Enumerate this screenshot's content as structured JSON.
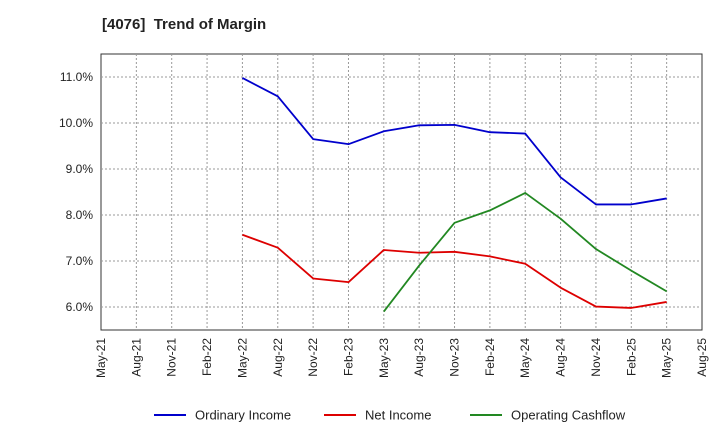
{
  "chart_data": {
    "type": "line",
    "title": "[4076]  Trend of Margin",
    "xlabel": "",
    "ylabel": "",
    "ylim": [
      5.5,
      11.5
    ],
    "yticks": [
      6.0,
      7.0,
      8.0,
      9.0,
      10.0,
      11.0
    ],
    "ytick_labels": [
      "6.0%",
      "7.0%",
      "8.0%",
      "9.0%",
      "10.0%",
      "11.0%"
    ],
    "categories": [
      "May-21",
      "Aug-21",
      "Nov-21",
      "Feb-22",
      "May-22",
      "Aug-22",
      "Nov-22",
      "Feb-23",
      "May-23",
      "Aug-23",
      "Nov-23",
      "Feb-24",
      "May-24",
      "Aug-24",
      "Nov-24",
      "Feb-25",
      "May-25",
      "Aug-25"
    ],
    "grid": true,
    "legend_position": "bottom",
    "series": [
      {
        "name": "Ordinary Income",
        "color": "#0000cc",
        "values": [
          null,
          null,
          null,
          null,
          10.98,
          10.58,
          9.65,
          9.54,
          9.82,
          9.95,
          9.96,
          9.8,
          9.77,
          8.82,
          8.23,
          8.23,
          8.36,
          null
        ]
      },
      {
        "name": "Net Income",
        "color": "#dd0000",
        "values": [
          null,
          null,
          null,
          null,
          7.57,
          7.29,
          6.62,
          6.54,
          7.24,
          7.18,
          7.2,
          7.1,
          6.94,
          6.42,
          6.01,
          5.98,
          6.11,
          null
        ]
      },
      {
        "name": "Operating Cashflow",
        "color": "#228822",
        "values": [
          null,
          null,
          null,
          null,
          null,
          null,
          null,
          null,
          5.9,
          6.9,
          7.83,
          8.1,
          8.48,
          7.92,
          7.26,
          6.79,
          6.34,
          null
        ]
      }
    ]
  }
}
